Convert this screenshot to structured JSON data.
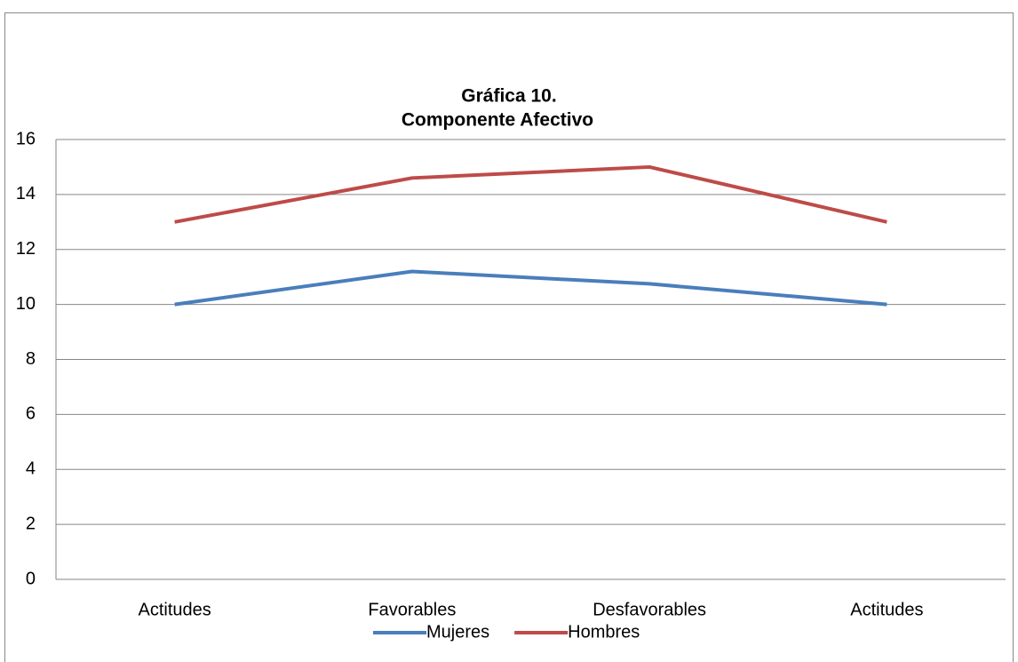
{
  "chart_data": {
    "type": "line",
    "title": "Gráfica 10.",
    "subtitle": "Componente Afectivo",
    "categories": [
      "Actitudes",
      "Favorables",
      "Desfavorables",
      "Actitudes"
    ],
    "series": [
      {
        "name": "Mujeres",
        "color": "#4a7ebb",
        "values": [
          10,
          11.2,
          10.75,
          10
        ]
      },
      {
        "name": "Hombres",
        "color": "#be4b48",
        "values": [
          13,
          14.6,
          15,
          13
        ]
      }
    ],
    "ylim": [
      0,
      16
    ],
    "yticks": [
      0,
      2,
      4,
      6,
      8,
      10,
      12,
      14,
      16
    ],
    "grid": true,
    "legend": "bottom"
  }
}
